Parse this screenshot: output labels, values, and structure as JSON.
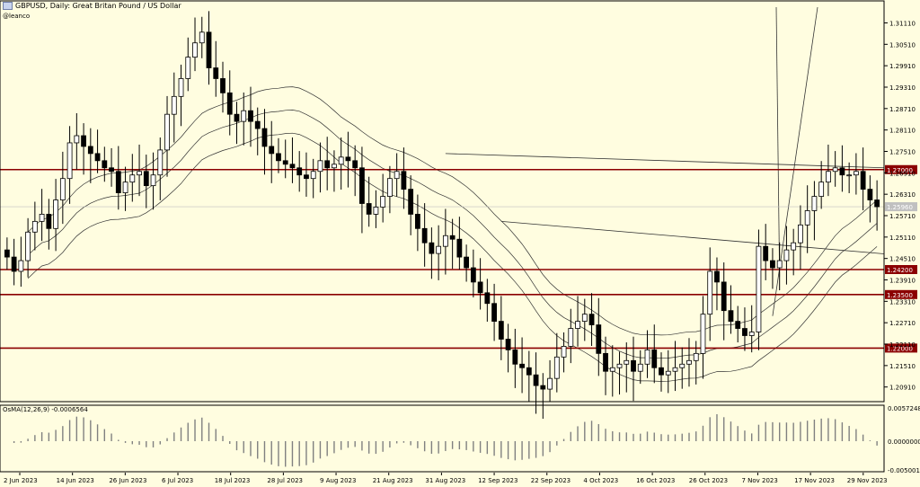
{
  "header": {
    "title": "GBPUSD, Daily:  Great Britan Pound / US Dollar",
    "watermark": "@leanco"
  },
  "osma": {
    "label": "OsMA(12,26,9) -0.0006564",
    "axis_labels": [
      "0.0057248",
      "0.0000000",
      "-0.0050013"
    ]
  },
  "colors": {
    "background": "#fffde0",
    "candle_bull": "#ffffff",
    "candle_bear": "#000000",
    "level_line": "#8b0000",
    "level_tag": "#8b0000",
    "trend": "#333333",
    "bands": "#333333"
  },
  "chart_data": {
    "type": "candlestick",
    "ylim": [
      1.2055,
      1.3155
    ],
    "y_ticks": [
      "1.31110",
      "1.30510",
      "1.29910",
      "1.29310",
      "1.28710",
      "1.28110",
      "1.27510",
      "1.26910",
      "1.26310",
      "1.25710",
      "1.25110",
      "1.24510",
      "1.23910",
      "1.23310",
      "1.22710",
      "1.22110",
      "1.21510",
      "1.20910"
    ],
    "x_labels": [
      "2 Jun 2023",
      "14 Jun 2023",
      "26 Jun 2023",
      "6 Jul 2023",
      "18 Jul 2023",
      "28 Jul 2023",
      "9 Aug 2023",
      "21 Aug 2023",
      "31 Aug 2023",
      "12 Sep 2023",
      "22 Sep 2023",
      "4 Oct 2023",
      "16 Oct 2023",
      "26 Oct 2023",
      "7 Nov 2023",
      "17 Nov 2023",
      "29 Nov 2023"
    ],
    "levels": [
      {
        "value": 1.27,
        "label": "1.27000"
      },
      {
        "value": 1.242,
        "label": "1.24200"
      },
      {
        "value": 1.235,
        "label": "1.23500"
      },
      {
        "value": 1.22,
        "label": "1.22000"
      }
    ],
    "current_price": {
      "value": 1.2596,
      "label": "1.25960"
    },
    "closes": [
      1.2455,
      1.2415,
      1.2445,
      1.2525,
      1.2555,
      1.2575,
      1.2535,
      1.2615,
      1.2675,
      1.2775,
      1.2795,
      1.2765,
      1.2745,
      1.2725,
      1.2705,
      1.2695,
      1.2635,
      1.2665,
      1.2685,
      1.2695,
      1.2655,
      1.2685,
      1.2755,
      1.2855,
      1.2905,
      1.2955,
      1.3015,
      1.3055,
      1.3085,
      1.2985,
      1.2955,
      1.2915,
      1.2855,
      1.2835,
      1.2865,
      1.2835,
      1.2815,
      1.2765,
      1.2745,
      1.2725,
      1.2715,
      1.2705,
      1.2685,
      1.2675,
      1.2695,
      1.2725,
      1.2705,
      1.2715,
      1.2735,
      1.2725,
      1.2705,
      1.2605,
      1.2575,
      1.2595,
      1.2625,
      1.2675,
      1.2695,
      1.2645,
      1.2575,
      1.2535,
      1.2495,
      1.2465,
      1.2485,
      1.2515,
      1.2505,
      1.2455,
      1.2425,
      1.2385,
      1.2355,
      1.2325,
      1.2275,
      1.2225,
      1.2195,
      1.2155,
      1.2145,
      1.2125,
      1.2095,
      1.2085,
      1.2115,
      1.2175,
      1.2205,
      1.2255,
      1.2275,
      1.2295,
      1.2265,
      1.2185,
      1.2135,
      1.2145,
      1.2155,
      1.2165,
      1.2135,
      1.2155,
      1.2195,
      1.2145,
      1.2125,
      1.2135,
      1.2145,
      1.2155,
      1.2165,
      1.2185,
      1.2295,
      1.2415,
      1.2385,
      1.2305,
      1.2275,
      1.2255,
      1.2235,
      1.2245,
      1.2485,
      1.2445,
      1.2425,
      1.2445,
      1.2475,
      1.2495,
      1.2545,
      1.2585,
      1.2625,
      1.2665,
      1.2695,
      1.2705,
      1.2685,
      1.2685,
      1.2695,
      1.2645,
      1.2615,
      1.2596
    ]
  }
}
